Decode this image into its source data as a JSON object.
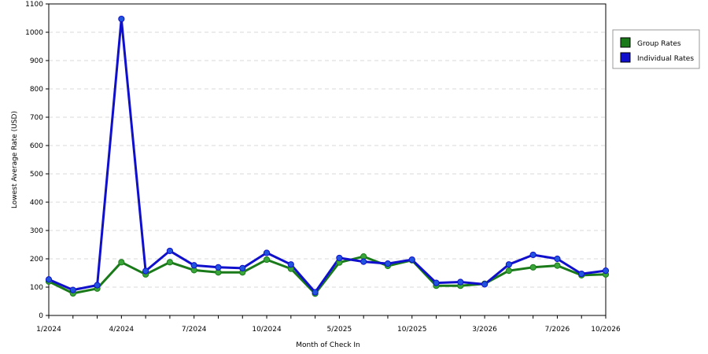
{
  "chart_data": {
    "type": "line",
    "title": "",
    "xlabel": "Month of Check In",
    "ylabel": "Lowest Average Rate (USD)",
    "ylim": [
      0,
      1100
    ],
    "yticks": [
      0,
      100,
      200,
      300,
      400,
      500,
      600,
      700,
      800,
      900,
      1000,
      1100
    ],
    "xtick_labels": [
      {
        "index": 0,
        "label": "1/2024"
      },
      {
        "index": 3,
        "label": "4/2024"
      },
      {
        "index": 6,
        "label": "7/2024"
      },
      {
        "index": 9,
        "label": "10/2024"
      },
      {
        "index": 12,
        "label": "5/2025"
      },
      {
        "index": 15,
        "label": "10/2025"
      },
      {
        "index": 18,
        "label": "3/2026"
      },
      {
        "index": 21,
        "label": "7/2026"
      },
      {
        "index": 23,
        "label": "10/2026"
      }
    ],
    "grid": true,
    "legend_position": "right",
    "series": [
      {
        "name": "Group Rates",
        "color": "#1a7a1a",
        "marker_color": "#3aa63a",
        "values": [
          120,
          78,
          95,
          188,
          145,
          188,
          160,
          152,
          152,
          197,
          165,
          77,
          187,
          208,
          175,
          195,
          105,
          105,
          112,
          158,
          170,
          176,
          142,
          145
        ]
      },
      {
        "name": "Individual Rates",
        "color": "#1010cc",
        "marker_color": "#2255dd",
        "values": [
          127,
          90,
          107,
          1047,
          157,
          228,
          177,
          170,
          167,
          221,
          180,
          82,
          203,
          190,
          183,
          197,
          115,
          118,
          110,
          180,
          214,
          200,
          147,
          158
        ]
      }
    ]
  }
}
